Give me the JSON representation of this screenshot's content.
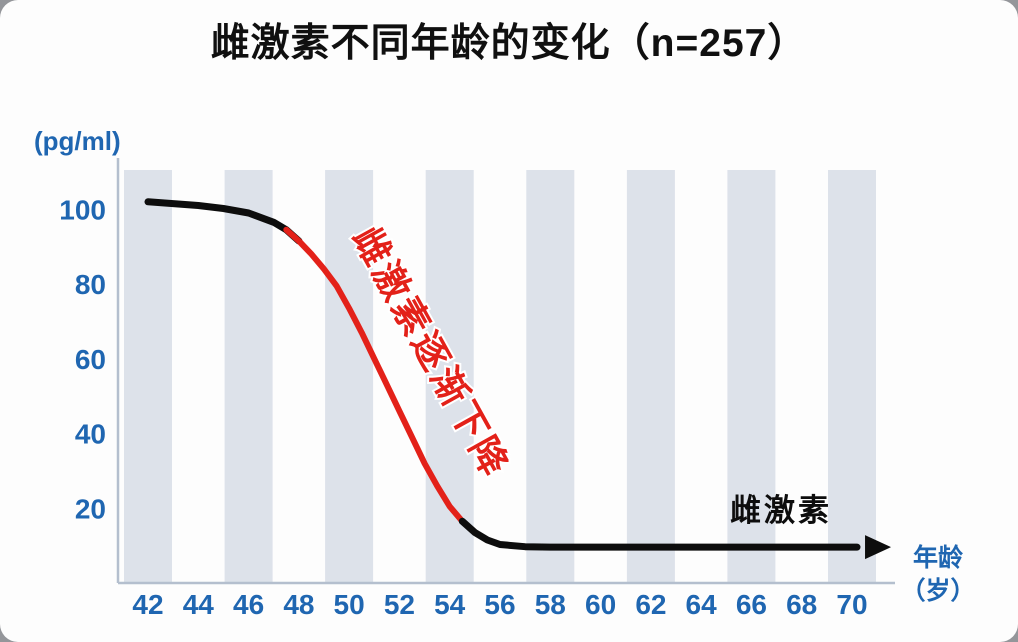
{
  "title": "雌激素不同年龄的变化（n=257）",
  "chart_data": {
    "type": "line",
    "title": "雌激素不同年龄的变化（n=257）",
    "ylabel": "(pg/ml)",
    "xlabel": "年龄（岁）",
    "xlabel_lines": [
      "年龄",
      "（岁）"
    ],
    "x_ticks": [
      42,
      44,
      46,
      48,
      50,
      52,
      54,
      56,
      58,
      60,
      62,
      64,
      66,
      68,
      70
    ],
    "y_ticks": [
      20,
      40,
      60,
      80,
      100
    ],
    "xlim": [
      41,
      71
    ],
    "ylim": [
      0,
      110
    ],
    "grid": "vertical-stripes",
    "legend_position": "none",
    "stripe_ages": [
      42,
      46,
      50,
      54,
      58,
      62,
      66,
      70
    ],
    "series": [
      {
        "name": "雌激素",
        "label": "雌激素",
        "points": [
          [
            42,
            102
          ],
          [
            43,
            101.5
          ],
          [
            44,
            101
          ],
          [
            45,
            100.2
          ],
          [
            46,
            99
          ],
          [
            47,
            96.5
          ],
          [
            47.5,
            94.5
          ],
          [
            48,
            91.5
          ],
          [
            48.5,
            88
          ],
          [
            49,
            84
          ],
          [
            49.5,
            79.5
          ],
          [
            50,
            73.5
          ],
          [
            50.5,
            67
          ],
          [
            51,
            60
          ],
          [
            51.5,
            53
          ],
          [
            52,
            46
          ],
          [
            52.5,
            39
          ],
          [
            53,
            32
          ],
          [
            53.5,
            26
          ],
          [
            54,
            20.5
          ],
          [
            54.5,
            16.5
          ],
          [
            55,
            13.5
          ],
          [
            55.5,
            11.5
          ],
          [
            56,
            10.3
          ],
          [
            57,
            9.7
          ],
          [
            58,
            9.6
          ],
          [
            60,
            9.6
          ],
          [
            62,
            9.6
          ],
          [
            64,
            9.6
          ],
          [
            66,
            9.6
          ],
          [
            68,
            9.6
          ],
          [
            70.2,
            9.6
          ]
        ],
        "segments": [
          {
            "color": "black",
            "from": 42,
            "to": 48,
            "arrow": false
          },
          {
            "color": "red",
            "from": 47.5,
            "to": 55,
            "arrow": false
          },
          {
            "color": "black",
            "from": 54.5,
            "to": 70.2,
            "arrow": true
          }
        ]
      }
    ],
    "annotation": {
      "text": "雌激素逐渐下降"
    }
  },
  "colors": {
    "axis_text": "#1f66b1",
    "curve_black": "#0d0d0d",
    "curve_red": "#e32119",
    "stripe": "#dde2ea",
    "axis_line": "#b4bfce",
    "annotation_red": "#e32119",
    "title_text": "#101010"
  }
}
